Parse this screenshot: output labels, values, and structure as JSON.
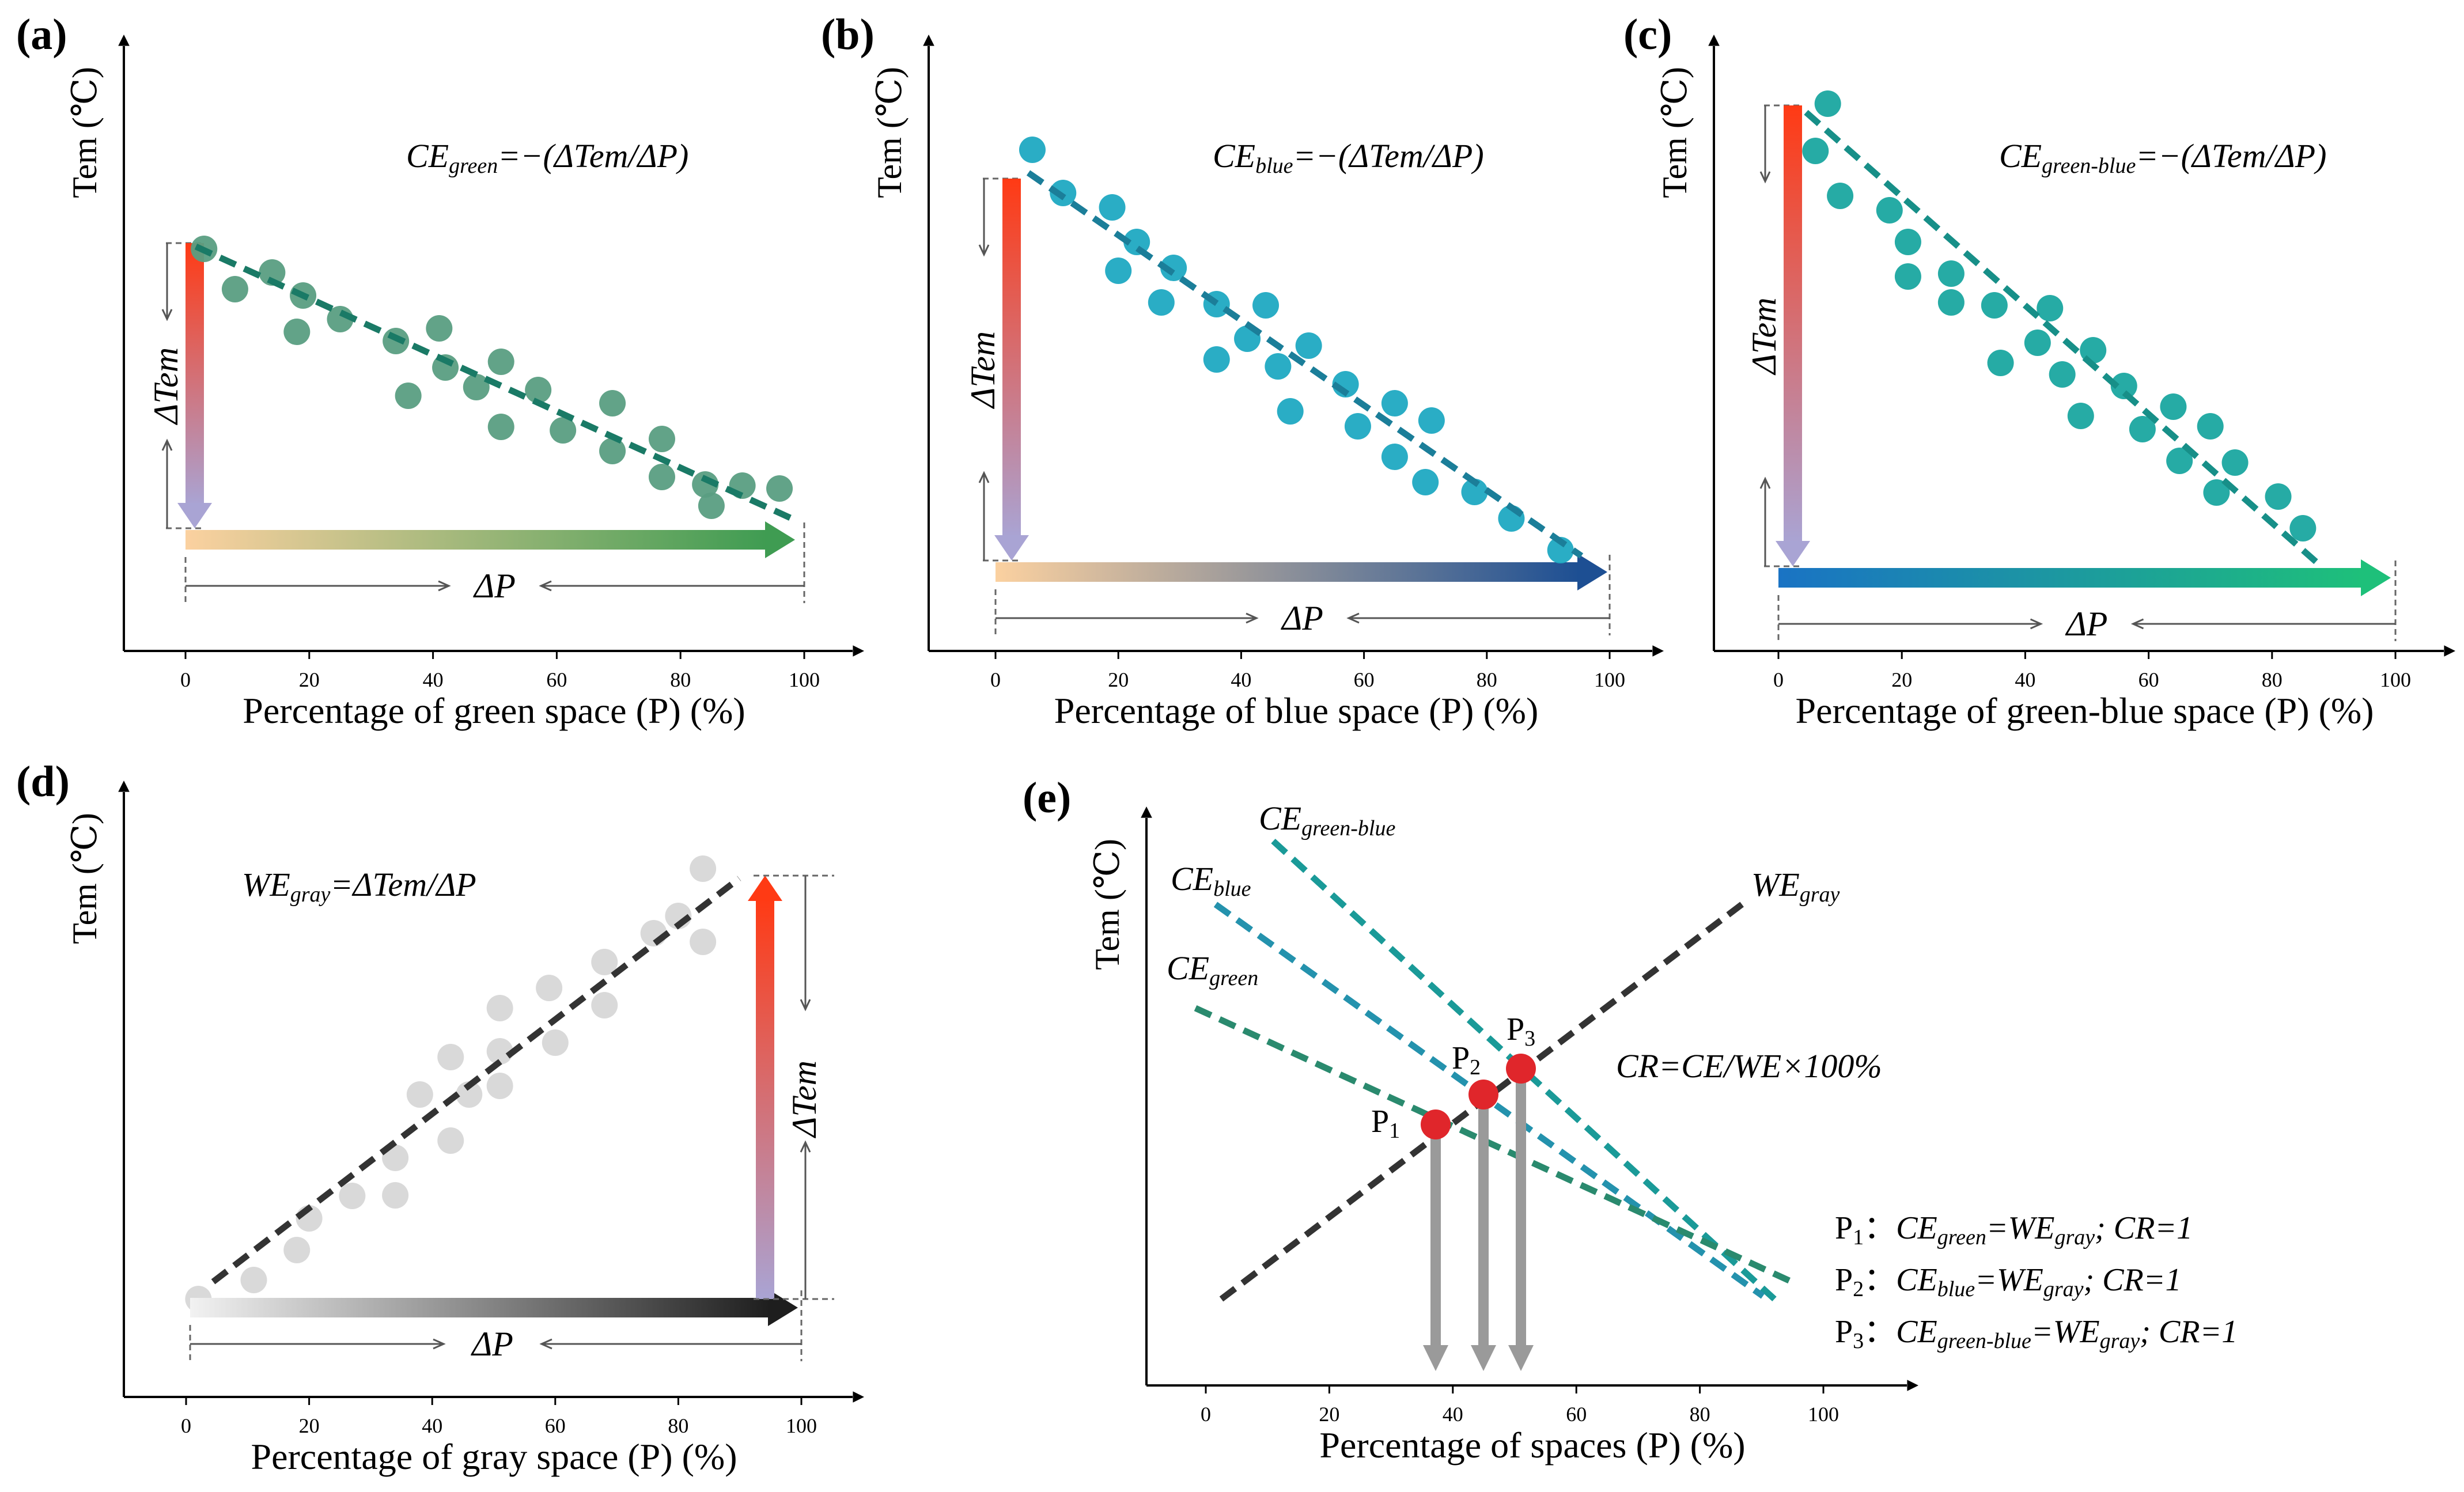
{
  "colors": {
    "green_dot": "#5a9e82",
    "green_line": "#1a7a66",
    "blue_dot": "#1fa9c2",
    "blue_line": "#1b7e99",
    "greenblue_dot": "#1aa7a0",
    "greenblue_line": "#178f88",
    "gray_dot": "#d9d9d9",
    "gray_line": "#333333",
    "red_point": "#e0262b",
    "down_arrow": "#9a9a9a",
    "ce_green_e": "#2a8a6e",
    "ce_blue_e": "#2492ad",
    "ce_greenblue_e": "#1a9a98"
  },
  "panels": [
    {
      "id": "a",
      "label": "(a)",
      "ylabel": "Tem (℃)",
      "xlabel": "Percentage of green space (P) (%)",
      "xticks": [
        "0",
        "20",
        "40",
        "60",
        "80",
        "100"
      ],
      "formula_ce": "CE",
      "formula_sub": "green",
      "formula_rest": "=−(ΔTem/ΔP)",
      "delta_tem": "ΔTem",
      "delta_p": "ΔP",
      "arrow_colors": [
        "#fbd1a0",
        "#3f9c52"
      ]
    },
    {
      "id": "b",
      "label": "(b)",
      "ylabel": "Tem (℃)",
      "xlabel": "Percentage of blue space (P) (%)",
      "xticks": [
        "0",
        "20",
        "40",
        "60",
        "80",
        "100"
      ],
      "formula_ce": "CE",
      "formula_sub": "blue",
      "formula_rest": "=−(ΔTem/ΔP)",
      "delta_tem": "ΔTem",
      "delta_p": "ΔP",
      "arrow_colors": [
        "#fbd1a0",
        "#1d4f93"
      ]
    },
    {
      "id": "c",
      "label": "(c)",
      "ylabel": "Tem (℃)",
      "xlabel": "Percentage of green-blue space (P) (%)",
      "xticks": [
        "0",
        "20",
        "40",
        "60",
        "80",
        "100"
      ],
      "formula_ce": "CE",
      "formula_sub": "green-blue",
      "formula_rest": "=−(ΔTem/ΔP)",
      "delta_tem": "ΔTem",
      "delta_p": "ΔP",
      "arrow_colors": [
        "#1a73c4",
        "#1ec07a"
      ]
    },
    {
      "id": "d",
      "label": "(d)",
      "ylabel": "Tem (℃)",
      "xlabel": "Percentage of gray space (P) (%)",
      "xticks": [
        "0",
        "20",
        "40",
        "60",
        "80",
        "100"
      ],
      "formula_ce": "WE",
      "formula_sub": "gray",
      "formula_rest": "=ΔTem/ΔP",
      "delta_tem": "ΔTem",
      "delta_p": "ΔP",
      "arrow_colors": [
        "#f2f2f2",
        "#1e1e1e"
      ]
    },
    {
      "id": "e",
      "label": "(e)",
      "ylabel": "Tem (℃)",
      "xlabel": "Percentage of spaces (P) (%)",
      "xticks": [
        "0",
        "20",
        "40",
        "60",
        "80",
        "100"
      ]
    }
  ],
  "panel_e": {
    "line_labels": [
      {
        "main": "CE",
        "sub": "green-blue"
      },
      {
        "main": "CE",
        "sub": "blue"
      },
      {
        "main": "CE",
        "sub": "green"
      },
      {
        "main": "WE",
        "sub": "gray"
      }
    ],
    "points": [
      {
        "name": "P",
        "sub": "1"
      },
      {
        "name": "P",
        "sub": "2"
      },
      {
        "name": "P",
        "sub": "3"
      }
    ],
    "cr_formula": "CR=CE/WE×100%",
    "legend": [
      {
        "p": "P",
        "psub": "1",
        "colon": "：",
        "ce": "CE",
        "cesub": "green",
        "eq": "=",
        "we": "WE",
        "wesub": "gray",
        "tail": "; CR=1"
      },
      {
        "p": "P",
        "psub": "2",
        "colon": "：",
        "ce": "CE",
        "cesub": "blue",
        "eq": "=",
        "we": "WE",
        "wesub": "gray",
        "tail": "; CR=1"
      },
      {
        "p": "P",
        "psub": "3",
        "colon": "：",
        "ce": "CE",
        "cesub": "green-blue",
        "eq": "=",
        "we": "WE",
        "wesub": "gray",
        "tail": "; CR=1"
      }
    ]
  }
}
